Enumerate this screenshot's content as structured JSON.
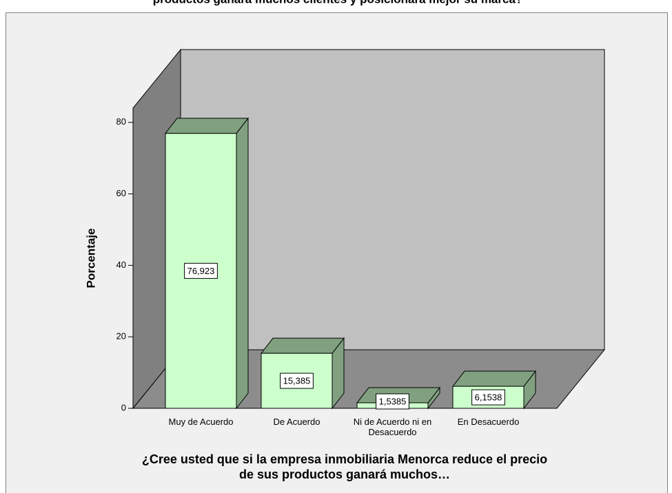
{
  "chart_data": {
    "type": "bar3d",
    "title": "productos ganará muchos clientes y posicionará mejor su marca?",
    "x_label": "¿Cree usted que si la empresa inmobiliaria Menorca reduce el precio de sus productos ganará muchos…",
    "y_label": "Porcentaje",
    "categories": [
      "Muy de Acuerdo",
      "De Acuerdo",
      "Ni de Acuerdo ni en Desacuerdo",
      "En Desacuerdo"
    ],
    "values": [
      76.923,
      15.385,
      1.5385,
      6.1538
    ],
    "value_labels": [
      "76,923",
      "15,385",
      "1,5385",
      "6,1538"
    ],
    "color": "#ccffcc",
    "side_color": "#80a080",
    "ylim": [
      0,
      84
    ],
    "yticks": [
      0,
      20,
      40,
      60,
      80
    ]
  }
}
